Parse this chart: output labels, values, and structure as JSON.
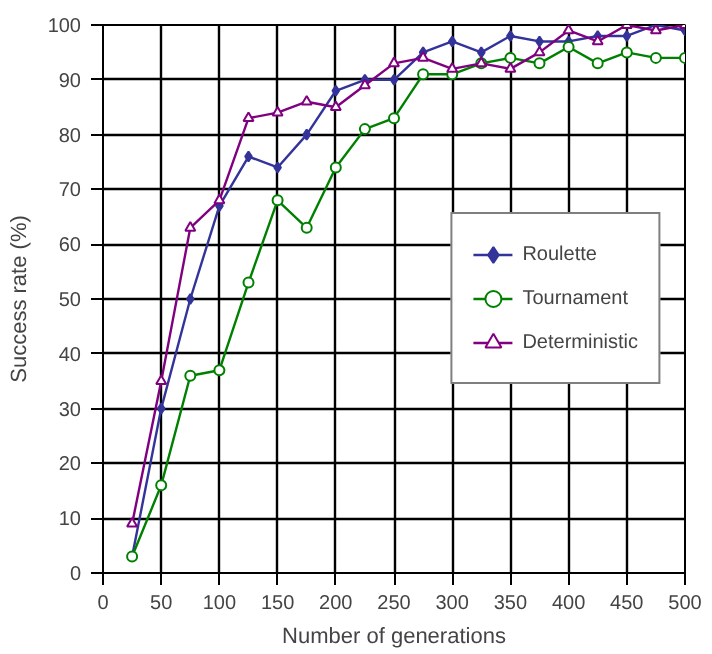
{
  "chart_data": {
    "type": "line",
    "xlabel": "Number of generations",
    "ylabel": "Success rate (%)",
    "x": [
      25,
      50,
      75,
      100,
      125,
      150,
      175,
      200,
      225,
      250,
      275,
      300,
      325,
      350,
      375,
      400,
      425,
      450,
      475,
      500
    ],
    "series": [
      {
        "name": "Roulette",
        "color": "#333399",
        "marker": "diamond",
        "values": [
          3,
          30,
          50,
          67,
          76,
          74,
          80,
          88,
          90,
          90,
          95,
          97,
          95,
          98,
          97,
          97,
          98,
          98,
          100,
          99
        ]
      },
      {
        "name": "Tournament",
        "color": "#008000",
        "marker": "circle",
        "values": [
          3,
          16,
          36,
          37,
          53,
          68,
          63,
          74,
          81,
          83,
          91,
          91,
          93,
          94,
          93,
          96,
          93,
          95,
          94,
          94
        ]
      },
      {
        "name": "Deterministic",
        "color": "#800080",
        "marker": "triangle",
        "values": [
          9,
          35,
          63,
          68,
          83,
          84,
          86,
          85,
          89,
          93,
          94,
          92,
          93,
          92,
          95,
          99,
          97,
          100,
          99,
          100
        ]
      }
    ],
    "xlim": [
      0,
      500
    ],
    "xticks": [
      0,
      50,
      100,
      150,
      200,
      250,
      300,
      350,
      400,
      450,
      500
    ],
    "ylim": [
      0,
      100
    ],
    "yticks": [
      0,
      10,
      20,
      30,
      40,
      50,
      60,
      70,
      80,
      90,
      100
    ],
    "grid": true,
    "legend": "right",
    "line_style": "solid"
  }
}
